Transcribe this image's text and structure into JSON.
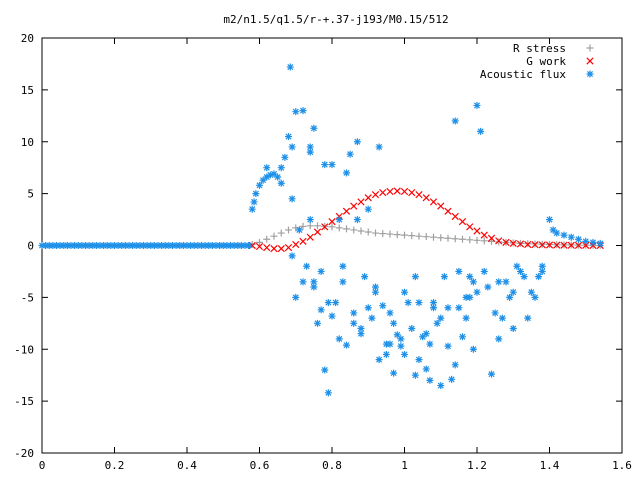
{
  "chart_data": {
    "type": "scatter",
    "title": "m2/n1.5/q1.5/r-+.37-j193/M0.15/512",
    "xlabel": "",
    "ylabel": "",
    "xlim": [
      0,
      1.6
    ],
    "ylim": [
      -20,
      20
    ],
    "xticks": [
      0,
      0.2,
      0.4,
      0.6,
      0.8,
      1,
      1.2,
      1.4,
      1.6
    ],
    "xtick_labels": [
      "0",
      "0.2",
      "0.4",
      "0.6",
      "0.8",
      "1",
      "1.2",
      "1.4",
      "1.6"
    ],
    "yticks": [
      -20,
      -15,
      -10,
      -5,
      0,
      5,
      10,
      15,
      20
    ],
    "ytick_labels": [
      "-20",
      "-15",
      "-10",
      "-5",
      "0",
      "5",
      "10",
      "15",
      "20"
    ],
    "grid": false,
    "legend_position": "top-right",
    "series": [
      {
        "name": "R stress",
        "marker": "plus",
        "color": "#a0a0a0",
        "x": [
          0.58,
          0.6,
          0.62,
          0.64,
          0.66,
          0.68,
          0.7,
          0.72,
          0.74,
          0.76,
          0.78,
          0.8,
          0.82,
          0.84,
          0.86,
          0.88,
          0.9,
          0.92,
          0.94,
          0.96,
          0.98,
          1.0,
          1.02,
          1.04,
          1.06,
          1.08,
          1.1,
          1.12,
          1.14,
          1.16,
          1.18,
          1.2,
          1.22,
          1.24,
          1.26,
          1.28,
          1.3,
          1.32,
          1.34,
          1.36,
          1.38,
          1.4,
          1.42,
          1.44,
          1.46,
          1.48,
          1.5,
          1.52,
          1.54
        ],
        "y": [
          0.1,
          0.3,
          0.6,
          0.9,
          1.2,
          1.5,
          1.7,
          1.85,
          1.9,
          1.9,
          1.85,
          1.8,
          1.7,
          1.6,
          1.5,
          1.4,
          1.3,
          1.2,
          1.15,
          1.1,
          1.05,
          1.0,
          0.95,
          0.9,
          0.85,
          0.8,
          0.75,
          0.7,
          0.65,
          0.6,
          0.55,
          0.5,
          0.45,
          0.4,
          0.35,
          0.3,
          0.25,
          0.2,
          0.18,
          0.15,
          0.12,
          0.1,
          0.08,
          0.06,
          0.05,
          0.04,
          0.03,
          0.02,
          0.01
        ]
      },
      {
        "name": "G work",
        "marker": "cross",
        "color": "#ff0000",
        "x": [
          0.58,
          0.6,
          0.62,
          0.64,
          0.66,
          0.68,
          0.7,
          0.72,
          0.74,
          0.76,
          0.78,
          0.8,
          0.82,
          0.84,
          0.86,
          0.88,
          0.9,
          0.92,
          0.94,
          0.96,
          0.98,
          1.0,
          1.02,
          1.04,
          1.06,
          1.08,
          1.1,
          1.12,
          1.14,
          1.16,
          1.18,
          1.2,
          1.22,
          1.24,
          1.26,
          1.28,
          1.3,
          1.32,
          1.34,
          1.36,
          1.38,
          1.4,
          1.42,
          1.44,
          1.46,
          1.48,
          1.5,
          1.52,
          1.54
        ],
        "y": [
          0.0,
          -0.1,
          -0.2,
          -0.3,
          -0.3,
          -0.2,
          0.1,
          0.4,
          0.8,
          1.3,
          1.8,
          2.3,
          2.8,
          3.3,
          3.8,
          4.2,
          4.6,
          4.9,
          5.1,
          5.2,
          5.25,
          5.2,
          5.1,
          4.9,
          4.6,
          4.2,
          3.8,
          3.3,
          2.8,
          2.3,
          1.8,
          1.4,
          1.0,
          0.7,
          0.45,
          0.3,
          0.2,
          0.15,
          0.1,
          0.08,
          0.06,
          0.05,
          0.04,
          0.03,
          0.02,
          0.01,
          0.01,
          0.0,
          0.0
        ]
      },
      {
        "name": "Acoustic flux",
        "marker": "star",
        "color": "#1e90e8",
        "x": [
          0.0,
          0.01,
          0.02,
          0.03,
          0.04,
          0.05,
          0.06,
          0.07,
          0.08,
          0.09,
          0.1,
          0.11,
          0.12,
          0.13,
          0.14,
          0.15,
          0.16,
          0.17,
          0.18,
          0.19,
          0.2,
          0.21,
          0.22,
          0.23,
          0.24,
          0.25,
          0.26,
          0.27,
          0.28,
          0.29,
          0.3,
          0.31,
          0.32,
          0.33,
          0.34,
          0.35,
          0.36,
          0.37,
          0.38,
          0.39,
          0.4,
          0.41,
          0.42,
          0.43,
          0.44,
          0.45,
          0.46,
          0.47,
          0.48,
          0.49,
          0.5,
          0.51,
          0.52,
          0.53,
          0.54,
          0.55,
          0.56,
          0.57,
          0.58,
          0.585,
          0.59,
          0.6,
          0.61,
          0.62,
          0.63,
          0.64,
          0.65,
          0.66,
          0.67,
          0.685,
          0.69,
          0.7,
          0.7,
          0.72,
          0.72,
          0.74,
          0.74,
          0.75,
          0.76,
          0.77,
          0.78,
          0.79,
          0.8,
          0.8,
          0.82,
          0.82,
          0.84,
          0.85,
          0.86,
          0.87,
          0.88,
          0.9,
          0.9,
          0.92,
          0.93,
          0.94,
          0.95,
          0.96,
          0.97,
          0.98,
          0.99,
          1.0,
          1.0,
          1.02,
          1.03,
          1.04,
          1.05,
          1.06,
          1.07,
          1.08,
          1.09,
          1.1,
          1.12,
          1.13,
          1.14,
          1.15,
          1.16,
          1.17,
          1.18,
          1.19,
          1.2,
          1.22,
          1.24,
          1.26,
          1.28,
          1.3,
          1.32,
          1.34,
          1.36,
          1.38,
          1.4,
          1.41,
          1.42,
          1.44,
          1.46,
          1.48,
          1.5,
          1.52,
          1.54,
          0.62,
          0.66,
          0.69,
          0.69,
          0.71,
          0.73,
          0.75,
          0.75,
          0.77,
          0.79,
          0.81,
          0.83,
          0.83,
          0.86,
          0.88,
          0.89,
          0.91,
          0.92,
          0.95,
          0.97,
          1.01,
          1.03,
          1.06,
          1.08,
          1.11,
          1.12,
          1.15,
          1.17,
          1.18,
          1.2,
          1.23,
          1.25,
          1.27,
          1.29,
          1.31,
          1.33,
          1.35,
          1.37,
          1.38,
          0.68,
          0.74,
          0.78,
          0.84,
          0.87,
          0.93,
          0.96,
          0.99,
          1.04,
          1.07,
          1.1,
          1.14,
          1.19,
          1.21,
          1.26,
          1.3
        ],
        "y": [
          0,
          0,
          0,
          0,
          0,
          0,
          0,
          0,
          0,
          0,
          0,
          0,
          0,
          0,
          0,
          0,
          0,
          0,
          0,
          0,
          0,
          0,
          0,
          0,
          0,
          0,
          0,
          0,
          0,
          0,
          0,
          0,
          0,
          0,
          0,
          0,
          0,
          0,
          0,
          0,
          0,
          0,
          0,
          0,
          0,
          0,
          0,
          0,
          0,
          0,
          0,
          0,
          0,
          0,
          0,
          0,
          0,
          0,
          3.5,
          4.2,
          5.0,
          5.8,
          6.3,
          6.6,
          6.8,
          6.9,
          6.6,
          7.5,
          8.5,
          17.2,
          9.5,
          -5.0,
          12.9,
          13.0,
          -3.5,
          9.5,
          2.5,
          11.3,
          -7.5,
          -6.2,
          7.8,
          -14.2,
          -6.8,
          7.8,
          -9.0,
          2.5,
          -9.6,
          8.8,
          -7.5,
          2.5,
          -8.5,
          -6.0,
          3.5,
          -4.5,
          -11.0,
          -5.8,
          -10.5,
          -6.5,
          -12.3,
          -8.6,
          -9.7,
          -10.5,
          -4.5,
          -8.0,
          -12.5,
          -5.5,
          -8.8,
          -11.9,
          -9.5,
          -5.5,
          -7.5,
          -13.5,
          -9.7,
          -12.9,
          -11.5,
          -6.0,
          -8.8,
          -5.0,
          -3.0,
          -3.5,
          13.5,
          -2.5,
          -12.4,
          -3.5,
          -3.5,
          -4.5,
          -2.5,
          -7.0,
          -5.0,
          -2.0,
          2.5,
          1.5,
          1.2,
          1.0,
          0.8,
          0.6,
          0.4,
          0.3,
          0.2,
          7.5,
          6.0,
          4.5,
          -1.0,
          1.5,
          -2.0,
          -4.0,
          -3.5,
          -2.5,
          -5.5,
          -5.5,
          -2.0,
          -3.5,
          -6.5,
          -8.0,
          -3.0,
          -7.0,
          -4.0,
          -9.5,
          -7.5,
          -5.5,
          -3.0,
          -8.5,
          -6.0,
          -3.0,
          -6.0,
          -2.5,
          -7.0,
          -5.0,
          -4.5,
          -4.0,
          -6.5,
          -7.0,
          -5.0,
          -2.0,
          -3.0,
          -4.5,
          -3.0,
          -2.5,
          10.5,
          9.0,
          -12.0,
          7.0,
          10.0,
          9.5,
          -9.5,
          -9.0,
          -11.0,
          -13.0,
          -7.0,
          12.0,
          -10.0,
          11.0,
          -9.0,
          -8.0
        ]
      }
    ]
  }
}
